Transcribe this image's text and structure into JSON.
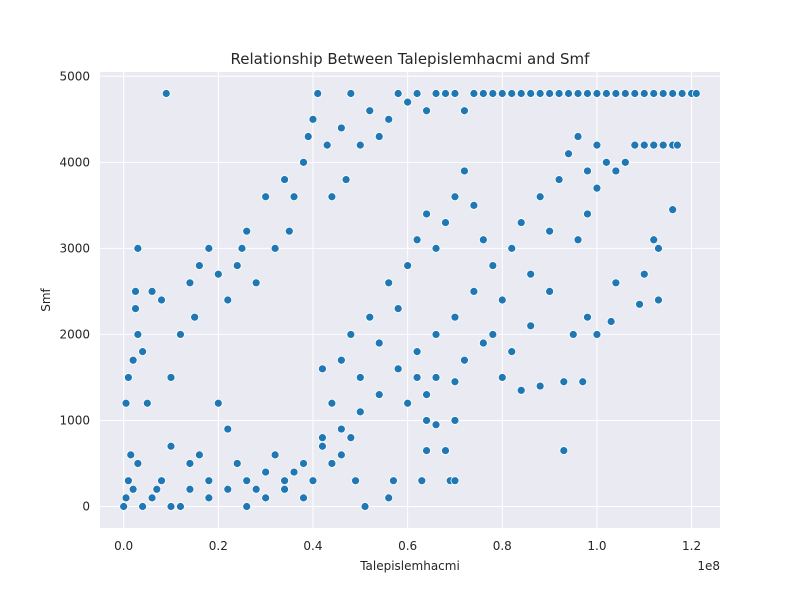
{
  "chart_data": {
    "type": "scatter",
    "title": "Relationship Between Talepislemhacmi and Smf",
    "xlabel": "Talepislemhacmi",
    "ylabel": "Smf",
    "x_offset_text": "1e8",
    "xlim": [
      -5000000,
      126000000
    ],
    "ylim": [
      -250,
      5050
    ],
    "x_ticks": [
      0,
      20000000,
      40000000,
      60000000,
      80000000,
      100000000,
      120000000
    ],
    "x_tick_labels": [
      "0.0",
      "0.2",
      "0.4",
      "0.6",
      "0.8",
      "1.0",
      "1.2"
    ],
    "y_ticks": [
      0,
      1000,
      2000,
      3000,
      4000,
      5000
    ],
    "y_tick_labels": [
      "0",
      "1000",
      "2000",
      "3000",
      "4000",
      "5000"
    ],
    "grid": true,
    "background": "#eaeaf2",
    "marker_color": "#1f77b4",
    "points": [
      [
        0,
        0
      ],
      [
        500000,
        100
      ],
      [
        1000000,
        300
      ],
      [
        1500000,
        600
      ],
      [
        500000,
        1200
      ],
      [
        1000000,
        1500
      ],
      [
        2000000,
        1700
      ],
      [
        2500000,
        2300
      ],
      [
        3000000,
        3000
      ],
      [
        2500000,
        2500
      ],
      [
        3000000,
        2000
      ],
      [
        4000000,
        1800
      ],
      [
        5000000,
        1200
      ],
      [
        6000000,
        2500
      ],
      [
        8000000,
        2400
      ],
      [
        9000000,
        4800
      ],
      [
        10000000,
        1500
      ],
      [
        12000000,
        2000
      ],
      [
        14000000,
        2600
      ],
      [
        15000000,
        2200
      ],
      [
        16000000,
        2800
      ],
      [
        18000000,
        3000
      ],
      [
        20000000,
        2700
      ],
      [
        22000000,
        2400
      ],
      [
        24000000,
        2800
      ],
      [
        25000000,
        3000
      ],
      [
        26000000,
        3200
      ],
      [
        28000000,
        2600
      ],
      [
        30000000,
        3600
      ],
      [
        32000000,
        3000
      ],
      [
        34000000,
        3800
      ],
      [
        35000000,
        3200
      ],
      [
        36000000,
        3600
      ],
      [
        38000000,
        4000
      ],
      [
        39000000,
        4300
      ],
      [
        40000000,
        4500
      ],
      [
        41000000,
        4800
      ],
      [
        43000000,
        4200
      ],
      [
        44000000,
        3600
      ],
      [
        46000000,
        4400
      ],
      [
        47000000,
        3800
      ],
      [
        48000000,
        4800
      ],
      [
        50000000,
        4200
      ],
      [
        52000000,
        4600
      ],
      [
        54000000,
        4300
      ],
      [
        56000000,
        4500
      ],
      [
        58000000,
        4800
      ],
      [
        60000000,
        4700
      ],
      [
        62000000,
        4800
      ],
      [
        64000000,
        4600
      ],
      [
        66000000,
        4800
      ],
      [
        68000000,
        4800
      ],
      [
        70000000,
        4800
      ],
      [
        72000000,
        4600
      ],
      [
        74000000,
        4800
      ],
      [
        76000000,
        4800
      ],
      [
        78000000,
        4800
      ],
      [
        80000000,
        4800
      ],
      [
        82000000,
        4800
      ],
      [
        84000000,
        4800
      ],
      [
        86000000,
        4800
      ],
      [
        88000000,
        4800
      ],
      [
        90000000,
        4800
      ],
      [
        92000000,
        4800
      ],
      [
        94000000,
        4800
      ],
      [
        96000000,
        4800
      ],
      [
        98000000,
        4800
      ],
      [
        100000000,
        4800
      ],
      [
        102000000,
        4800
      ],
      [
        104000000,
        4800
      ],
      [
        106000000,
        4800
      ],
      [
        108000000,
        4800
      ],
      [
        110000000,
        4800
      ],
      [
        112000000,
        4800
      ],
      [
        114000000,
        4800
      ],
      [
        116000000,
        4800
      ],
      [
        118000000,
        4800
      ],
      [
        120000000,
        4800
      ],
      [
        121000000,
        4800
      ],
      [
        110000000,
        4200
      ],
      [
        112000000,
        4200
      ],
      [
        114000000,
        4200
      ],
      [
        116000000,
        4200
      ],
      [
        117000000,
        4200
      ],
      [
        108000000,
        4200
      ],
      [
        106000000,
        4000
      ],
      [
        104000000,
        3900
      ],
      [
        100000000,
        3700
      ],
      [
        98000000,
        3400
      ],
      [
        96000000,
        3100
      ],
      [
        112000000,
        3100
      ],
      [
        113000000,
        3000
      ],
      [
        116000000,
        3450
      ],
      [
        110000000,
        2700
      ],
      [
        109000000,
        2350
      ],
      [
        113000000,
        2400
      ],
      [
        104000000,
        2600
      ],
      [
        103000000,
        2150
      ],
      [
        100000000,
        2000
      ],
      [
        98000000,
        2200
      ],
      [
        95000000,
        2000
      ],
      [
        93000000,
        1450
      ],
      [
        97000000,
        1450
      ],
      [
        93000000,
        650
      ],
      [
        88000000,
        1400
      ],
      [
        84000000,
        1350
      ],
      [
        80000000,
        1500
      ],
      [
        76000000,
        1900
      ],
      [
        72000000,
        1700
      ],
      [
        70000000,
        1450
      ],
      [
        66000000,
        1500
      ],
      [
        64000000,
        1300
      ],
      [
        62000000,
        1500
      ],
      [
        60000000,
        1200
      ],
      [
        64000000,
        1000
      ],
      [
        66000000,
        950
      ],
      [
        70000000,
        1000
      ],
      [
        68000000,
        650
      ],
      [
        69000000,
        300
      ],
      [
        70000000,
        300
      ],
      [
        64000000,
        650
      ],
      [
        63000000,
        300
      ],
      [
        57000000,
        300
      ],
      [
        56000000,
        100
      ],
      [
        51000000,
        0
      ],
      [
        49000000,
        300
      ],
      [
        48000000,
        800
      ],
      [
        46000000,
        600
      ],
      [
        44000000,
        500
      ],
      [
        42000000,
        800
      ],
      [
        40000000,
        300
      ],
      [
        38000000,
        100
      ],
      [
        36000000,
        400
      ],
      [
        34000000,
        200
      ],
      [
        32000000,
        600
      ],
      [
        30000000,
        400
      ],
      [
        28000000,
        200
      ],
      [
        26000000,
        0
      ],
      [
        24000000,
        500
      ],
      [
        22000000,
        900
      ],
      [
        20000000,
        1200
      ],
      [
        18000000,
        300
      ],
      [
        16000000,
        600
      ],
      [
        14000000,
        200
      ],
      [
        12000000,
        0
      ],
      [
        10000000,
        700
      ],
      [
        8000000,
        300
      ],
      [
        6000000,
        100
      ],
      [
        4000000,
        0
      ],
      [
        2000000,
        200
      ],
      [
        44000000,
        1200
      ],
      [
        42000000,
        1600
      ],
      [
        46000000,
        1700
      ],
      [
        48000000,
        2000
      ],
      [
        50000000,
        1500
      ],
      [
        52000000,
        2200
      ],
      [
        54000000,
        1900
      ],
      [
        56000000,
        2600
      ],
      [
        58000000,
        2300
      ],
      [
        60000000,
        2800
      ],
      [
        62000000,
        3100
      ],
      [
        64000000,
        3400
      ],
      [
        66000000,
        3000
      ],
      [
        68000000,
        3300
      ],
      [
        70000000,
        3600
      ],
      [
        72000000,
        3900
      ],
      [
        74000000,
        3500
      ],
      [
        76000000,
        3100
      ],
      [
        78000000,
        2800
      ],
      [
        80000000,
        2400
      ],
      [
        82000000,
        3000
      ],
      [
        84000000,
        3300
      ],
      [
        86000000,
        2700
      ],
      [
        88000000,
        3600
      ],
      [
        90000000,
        3200
      ],
      [
        92000000,
        3800
      ],
      [
        94000000,
        4100
      ],
      [
        96000000,
        4300
      ],
      [
        98000000,
        3900
      ],
      [
        100000000,
        4200
      ],
      [
        102000000,
        4000
      ],
      [
        90000000,
        2500
      ],
      [
        86000000,
        2100
      ],
      [
        82000000,
        1800
      ],
      [
        78000000,
        2000
      ],
      [
        74000000,
        2500
      ],
      [
        70000000,
        2200
      ],
      [
        66000000,
        2000
      ],
      [
        62000000,
        1800
      ],
      [
        58000000,
        1600
      ],
      [
        54000000,
        1300
      ],
      [
        50000000,
        1100
      ],
      [
        46000000,
        900
      ],
      [
        42000000,
        700
      ],
      [
        38000000,
        500
      ],
      [
        34000000,
        300
      ],
      [
        30000000,
        100
      ],
      [
        26000000,
        300
      ],
      [
        22000000,
        200
      ],
      [
        18000000,
        100
      ],
      [
        14000000,
        500
      ],
      [
        10000000,
        0
      ],
      [
        7000000,
        200
      ],
      [
        3000000,
        500
      ]
    ]
  }
}
